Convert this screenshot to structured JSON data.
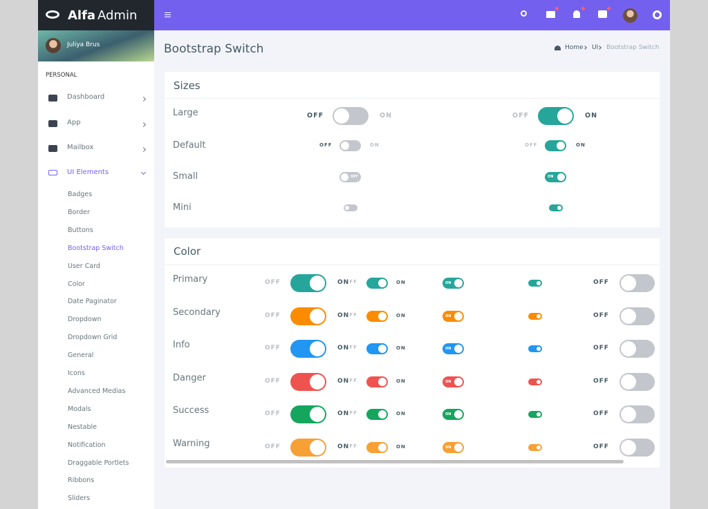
{
  "brand": {
    "alfa": "Alfa",
    "admin": "Admin"
  },
  "user": {
    "name": "Juliya Brus"
  },
  "sidebar": {
    "section": "PERSONAL",
    "menu": [
      "Dashboard",
      "App",
      "Mailbox",
      "UI Elements"
    ],
    "submenu": [
      "Badges",
      "Border",
      "Buttons",
      "Bootstrap Switch",
      "User Card",
      "Color",
      "Date Paginator",
      "Dropdown",
      "Dropdown Grid",
      "General",
      "Icons",
      "Advanced Medias",
      "Modals",
      "Nestable",
      "Notification",
      "Draggable Portlets",
      "Ribbons",
      "Sliders"
    ],
    "active_submenu": 3
  },
  "page": {
    "title": "Bootstrap Switch",
    "breadcrumb": [
      "Home",
      "UI",
      "Bootstrap Switch"
    ]
  },
  "switch_labels": {
    "off": "OFF",
    "on": "ON"
  },
  "sizes": {
    "title": "Sizes",
    "rows": [
      "Large",
      "Default",
      "Small",
      "Mini"
    ],
    "color": "#26a69a"
  },
  "colors": {
    "title": "Color",
    "rows": [
      {
        "name": "Primary",
        "color": "#26a69a"
      },
      {
        "name": "Secondary",
        "color": "#fb8c00"
      },
      {
        "name": "Info",
        "color": "#2196f3"
      },
      {
        "name": "Danger",
        "color": "#ef5350"
      },
      {
        "name": "Success",
        "color": "#15a65e"
      },
      {
        "name": "Warning",
        "color": "#f7a035"
      }
    ]
  }
}
